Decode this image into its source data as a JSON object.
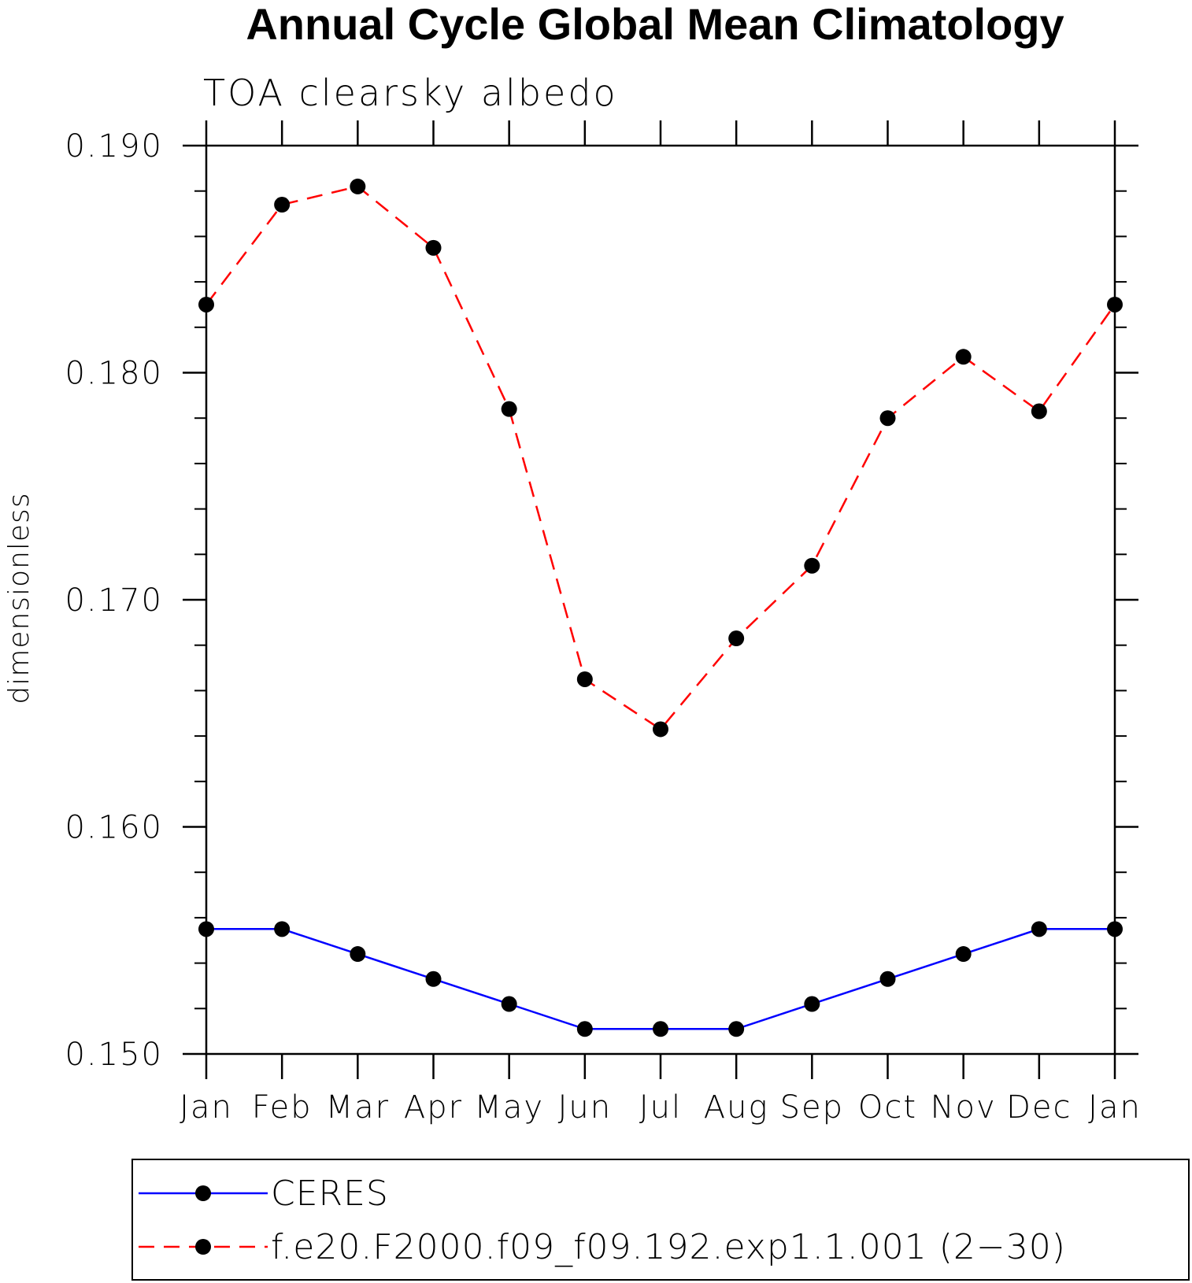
{
  "chart_data": {
    "type": "line",
    "title": "Annual Cycle Global Mean Climatology",
    "subtitle": "TOA clearsky albedo",
    "xlabel": "",
    "ylabel": "dimensionless",
    "categories": [
      "Jan",
      "Feb",
      "Mar",
      "Apr",
      "May",
      "Jun",
      "Jul",
      "Aug",
      "Sep",
      "Oct",
      "Nov",
      "Dec",
      "Jan"
    ],
    "ylim": [
      0.15,
      0.19
    ],
    "yticks": [
      0.15,
      0.16,
      0.17,
      0.18,
      0.19
    ],
    "ytick_labels": [
      "0.150",
      "0.160",
      "0.170",
      "0.180",
      "0.190"
    ],
    "series": [
      {
        "name": "CERES",
        "color": "#0000ff",
        "dash": "solid",
        "marker": "filled-circle",
        "values": [
          0.1555,
          0.1555,
          0.1544,
          0.1533,
          0.1522,
          0.1511,
          0.1511,
          0.1511,
          0.1522,
          0.1533,
          0.1544,
          0.1555,
          0.1555
        ]
      },
      {
        "name": "f.e20.F2000.f09_f09.192.exp1.1.001 (2-30)",
        "color": "#ff0000",
        "dash": "dashed",
        "marker": "filled-circle",
        "values": [
          0.183,
          0.1874,
          0.1882,
          0.1855,
          0.1784,
          0.1665,
          0.1643,
          0.1683,
          0.1715,
          0.178,
          0.1807,
          0.1783,
          0.183
        ]
      }
    ],
    "legend": {
      "position": "bottom",
      "entries": [
        "CERES",
        "f.e20.F2000.f09_f09.192.exp1.1.001 (2−30)"
      ]
    }
  }
}
